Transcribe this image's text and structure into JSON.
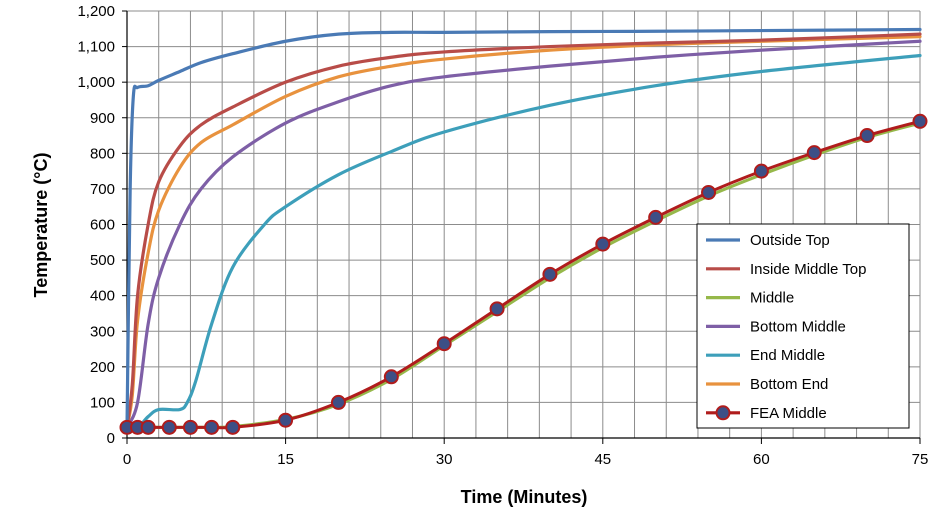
{
  "chart_data": {
    "type": "line",
    "title": "",
    "xlabel": "Time (Minutes)",
    "ylabel": "Temperature (°C)",
    "xlim": [
      0,
      75
    ],
    "ylim": [
      0,
      1200
    ],
    "x_ticks": [
      0,
      15,
      30,
      45,
      60,
      75
    ],
    "x_tick_labels": [
      "0",
      "15",
      "30",
      "45",
      "60",
      "75"
    ],
    "y_ticks": [
      0,
      100,
      200,
      300,
      400,
      500,
      600,
      700,
      800,
      900,
      1000,
      1100,
      1200
    ],
    "y_tick_labels": [
      "0",
      "100",
      "200",
      "300",
      "400",
      "500",
      "600",
      "700",
      "800",
      "900",
      "1,000",
      "1,100",
      "1,200"
    ],
    "grid": true,
    "legend_position": "bottom-right",
    "series": [
      {
        "name": "Outside Top",
        "color": "#4a7ab5",
        "x": [
          0,
          0.3,
          0.6,
          1,
          2,
          3,
          5,
          7,
          10,
          15,
          20,
          25,
          30,
          40,
          50,
          60,
          75
        ],
        "y": [
          30,
          700,
          960,
          985,
          990,
          1005,
          1030,
          1055,
          1080,
          1115,
          1135,
          1140,
          1140,
          1142,
          1143,
          1145,
          1148
        ]
      },
      {
        "name": "Inside Middle Top",
        "color": "#b84c48",
        "x": [
          0,
          0.5,
          1,
          2,
          3,
          5,
          7,
          10,
          15,
          20,
          25,
          30,
          40,
          50,
          60,
          75
        ],
        "y": [
          30,
          150,
          400,
          600,
          720,
          820,
          880,
          930,
          1000,
          1045,
          1070,
          1085,
          1100,
          1110,
          1118,
          1135
        ]
      },
      {
        "name": "Middle",
        "color": "#96b84a",
        "x": [
          0,
          2,
          4,
          6,
          8,
          10,
          15,
          20,
          25,
          30,
          35,
          40,
          45,
          50,
          55,
          60,
          65,
          70,
          75
        ],
        "y": [
          30,
          30,
          30,
          30,
          30,
          32,
          52,
          95,
          165,
          260,
          355,
          450,
          535,
          610,
          680,
          740,
          795,
          845,
          885
        ]
      },
      {
        "name": "Bottom Middle",
        "color": "#7e5fa6",
        "x": [
          0,
          1,
          2,
          3,
          5,
          7,
          10,
          15,
          20,
          25,
          30,
          40,
          50,
          60,
          75
        ],
        "y": [
          30,
          100,
          320,
          450,
          600,
          700,
          790,
          885,
          945,
          990,
          1015,
          1045,
          1070,
          1090,
          1115
        ]
      },
      {
        "name": "End Middle",
        "color": "#3d9fba",
        "x": [
          0,
          1,
          2,
          3,
          5,
          5.7,
          6.5,
          8,
          10,
          13,
          15,
          20,
          25,
          30,
          40,
          50,
          60,
          75
        ],
        "y": [
          30,
          30,
          60,
          80,
          80,
          100,
          160,
          320,
          480,
          600,
          650,
          740,
          805,
          860,
          935,
          990,
          1030,
          1075
        ]
      },
      {
        "name": "Bottom End",
        "color": "#e8923e",
        "x": [
          0,
          0.5,
          1,
          2,
          3,
          5,
          7,
          10,
          15,
          20,
          25,
          30,
          40,
          50,
          60,
          75
        ],
        "y": [
          30,
          120,
          330,
          520,
          640,
          760,
          830,
          880,
          960,
          1015,
          1045,
          1065,
          1090,
          1105,
          1115,
          1128
        ]
      },
      {
        "name": "FEA Middle",
        "color": "#b01c1c",
        "marker_color": "#3d4f86",
        "x": [
          0,
          1,
          2,
          4,
          6,
          8,
          10,
          15,
          20,
          25,
          30,
          35,
          40,
          45,
          50,
          55,
          60,
          65,
          70,
          75
        ],
        "y": [
          30,
          30,
          30,
          30,
          30,
          30,
          30,
          50,
          100,
          172,
          265,
          363,
          460,
          545,
          620,
          690,
          750,
          802,
          850,
          890
        ]
      }
    ]
  }
}
